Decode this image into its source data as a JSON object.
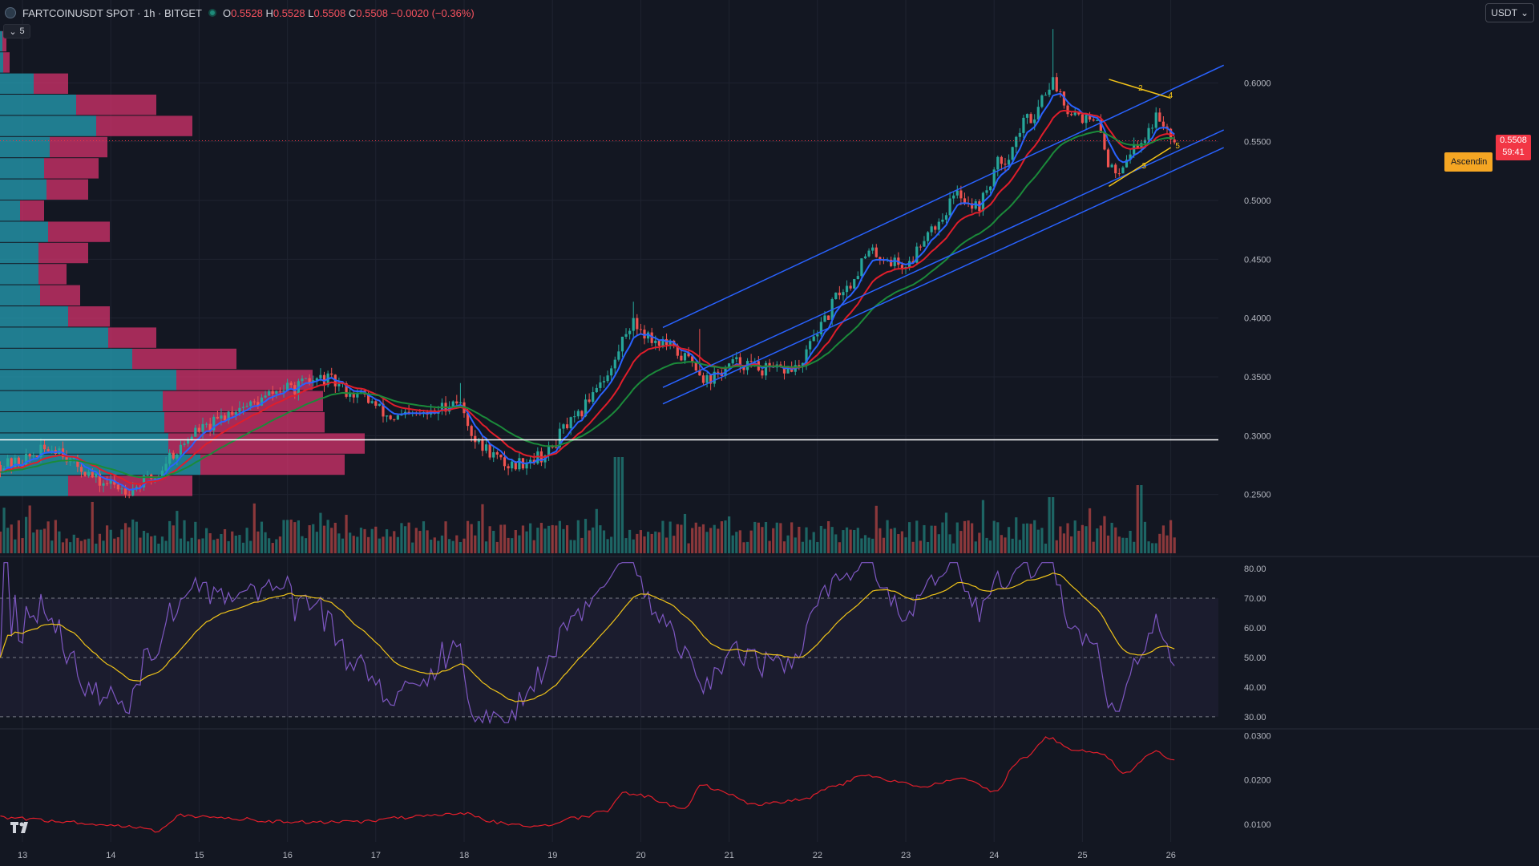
{
  "header": {
    "symbol": "FARTCOINUSDT SPOT · 1h · BITGET",
    "ohlc": [
      {
        "k": "O",
        "v": "0.5528"
      },
      {
        "k": "H",
        "v": "0.5528"
      },
      {
        "k": "L",
        "v": "0.5508"
      },
      {
        "k": "C",
        "v": "0.5508"
      }
    ],
    "change": "−0.0020 (−0.36%)"
  },
  "collapse_label": "5",
  "currency_button": "USDT",
  "last_price": {
    "price": "0.5508",
    "countdown": "59:41"
  },
  "pattern_label": "Ascendin",
  "colors": {
    "background": "#131722",
    "up": "#26a69a",
    "down": "#ef5350",
    "ema_fast": "#2962ff",
    "ema_mid": "#e01e2b",
    "ema_slow": "#1b8a3a",
    "channel": "#2962ff",
    "rsi": "#7e57c2",
    "rsi_ma": "#f0c419",
    "vp_up": "#26a0b5",
    "vp_down": "#d6336c",
    "bottom_line": "#e01e2b"
  },
  "chart_data": [
    {
      "type": "candlestick",
      "name": "price",
      "x_ticks": [
        "13",
        "14",
        "15",
        "16",
        "17",
        "18",
        "19",
        "20",
        "21",
        "22",
        "23",
        "24",
        "25",
        "26"
      ],
      "y_ticks": [
        "0.6000",
        "0.5500",
        "0.5000",
        "0.4500",
        "0.4000",
        "0.3500",
        "0.3000",
        "0.2500"
      ],
      "ylim": [
        0.2,
        0.65
      ],
      "horizontal_line": 0.2965,
      "trend_waypoints": [
        [
          12.8,
          0.275
        ],
        [
          13.4,
          0.29
        ],
        [
          13.6,
          0.275
        ],
        [
          13.9,
          0.26
        ],
        [
          14.2,
          0.255
        ],
        [
          14.5,
          0.265
        ],
        [
          14.7,
          0.285
        ],
        [
          15.0,
          0.305
        ],
        [
          15.5,
          0.325
        ],
        [
          16.0,
          0.34
        ],
        [
          16.4,
          0.348
        ],
        [
          16.8,
          0.335
        ],
        [
          17.2,
          0.315
        ],
        [
          17.6,
          0.318
        ],
        [
          17.9,
          0.33
        ],
        [
          18.2,
          0.29
        ],
        [
          18.5,
          0.275
        ],
        [
          18.9,
          0.283
        ],
        [
          19.2,
          0.31
        ],
        [
          19.6,
          0.35
        ],
        [
          19.9,
          0.395
        ],
        [
          20.2,
          0.38
        ],
        [
          20.55,
          0.365
        ],
        [
          20.75,
          0.348
        ],
        [
          21.1,
          0.362
        ],
        [
          21.5,
          0.355
        ],
        [
          21.8,
          0.358
        ],
        [
          22.0,
          0.39
        ],
        [
          22.3,
          0.425
        ],
        [
          22.6,
          0.455
        ],
        [
          23.0,
          0.445
        ],
        [
          23.3,
          0.478
        ],
        [
          23.6,
          0.505
        ],
        [
          23.8,
          0.495
        ],
        [
          24.1,
          0.535
        ],
        [
          24.4,
          0.57
        ],
        [
          24.65,
          0.6
        ],
        [
          24.9,
          0.575
        ],
        [
          25.15,
          0.565
        ],
        [
          25.35,
          0.525
        ],
        [
          25.6,
          0.545
        ],
        [
          25.85,
          0.57
        ],
        [
          26.05,
          0.555
        ]
      ],
      "ema_lag_bars": [
        6,
        14,
        30
      ],
      "ascending_channel": {
        "upper": [
          [
            20.25,
            0.392
          ],
          [
            26.6,
            0.615
          ]
        ],
        "lower": [
          [
            20.25,
            0.327
          ],
          [
            26.6,
            0.545
          ]
        ],
        "inner": [
          [
            20.25,
            0.341
          ],
          [
            26.6,
            0.56
          ]
        ]
      },
      "triangle_pattern": {
        "upper": [
          [
            25.3,
            0.603
          ],
          [
            26.0,
            0.587
          ]
        ],
        "lower": [
          [
            25.3,
            0.512
          ],
          [
            26.0,
            0.545
          ]
        ],
        "points": [
          {
            "label": "2",
            "x": 25.66,
            "y": 0.596
          },
          {
            "label": "3",
            "x": 25.7,
            "y": 0.53
          },
          {
            "label": "4",
            "x": 26.0,
            "y": 0.59
          },
          {
            "label": "5",
            "x": 26.08,
            "y": 0.547
          }
        ]
      },
      "volume_profile": {
        "price_bins": [
          0.635,
          0.617,
          0.599,
          0.581,
          0.563,
          0.545,
          0.527,
          0.509,
          0.491,
          0.473,
          0.455,
          0.437,
          0.419,
          0.401,
          0.383,
          0.365,
          0.347,
          0.329,
          0.311,
          0.293,
          0.275,
          0.257
        ],
        "up_volume": [
          3,
          4,
          42,
          95,
          120,
          62,
          55,
          58,
          25,
          60,
          48,
          48,
          50,
          85,
          135,
          165,
          220,
          203,
          205,
          210,
          250,
          85
        ],
        "down_volume": [
          5,
          8,
          43,
          100,
          120,
          72,
          68,
          52,
          30,
          77,
          62,
          35,
          50,
          52,
          60,
          130,
          170,
          200,
          200,
          245,
          180,
          155
        ]
      }
    },
    {
      "type": "line",
      "name": "RSI",
      "y_ticks": [
        "80.00",
        "70.00",
        "60.00",
        "50.00",
        "40.00",
        "30.00"
      ],
      "ylim": [
        27,
        83
      ],
      "bands": [
        30,
        50,
        70
      ]
    },
    {
      "type": "line",
      "name": "bottom-indicator",
      "y_ticks": [
        "0.0300",
        "0.0200",
        "0.0100"
      ],
      "ylim": [
        0.006,
        0.031
      ],
      "waypoints": [
        [
          12.8,
          0.0115
        ],
        [
          13.5,
          0.0105
        ],
        [
          14.2,
          0.0095
        ],
        [
          14.5,
          0.0085
        ],
        [
          14.8,
          0.012
        ],
        [
          15.2,
          0.0115
        ],
        [
          16.0,
          0.0105
        ],
        [
          16.8,
          0.0105
        ],
        [
          17.3,
          0.0115
        ],
        [
          17.6,
          0.0118
        ],
        [
          18.0,
          0.0125
        ],
        [
          18.3,
          0.0105
        ],
        [
          18.8,
          0.0095
        ],
        [
          19.3,
          0.0115
        ],
        [
          19.6,
          0.013
        ],
        [
          19.8,
          0.017
        ],
        [
          20.0,
          0.0165
        ],
        [
          20.5,
          0.0135
        ],
        [
          20.7,
          0.019
        ],
        [
          20.9,
          0.0175
        ],
        [
          21.3,
          0.0145
        ],
        [
          21.8,
          0.0155
        ],
        [
          22.2,
          0.0185
        ],
        [
          22.5,
          0.021
        ],
        [
          22.8,
          0.02
        ],
        [
          23.2,
          0.0185
        ],
        [
          23.6,
          0.0205
        ],
        [
          24.0,
          0.0175
        ],
        [
          24.3,
          0.0245
        ],
        [
          24.6,
          0.0295
        ],
        [
          24.9,
          0.027
        ],
        [
          25.2,
          0.026
        ],
        [
          25.5,
          0.0215
        ],
        [
          25.8,
          0.0265
        ],
        [
          26.1,
          0.024
        ]
      ]
    }
  ]
}
